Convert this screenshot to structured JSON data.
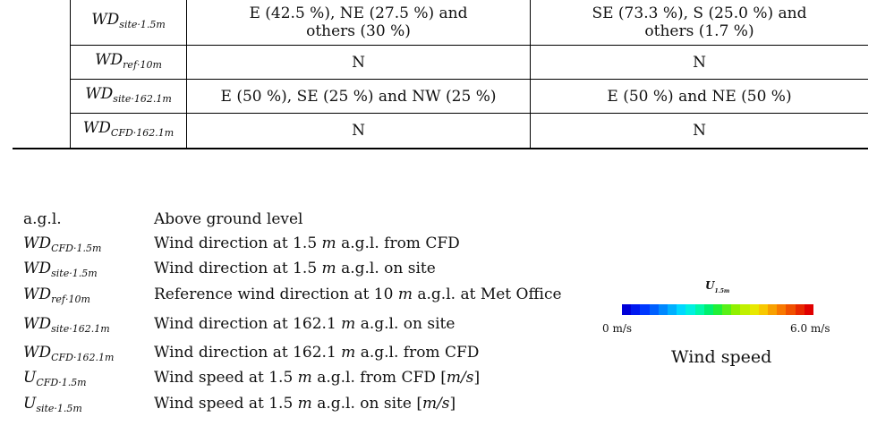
{
  "table": {
    "rows": [
      {
        "symbol": {
          "base": "WD",
          "sub": "site·1.5m"
        },
        "col1": [
          "E (42.5 %), NE (27.5 %) and",
          "others (30 %)"
        ],
        "col2": [
          "SE (73.3 %), S (25.0 %) and",
          "others (1.7 %)"
        ]
      },
      {
        "symbol": {
          "base": "WD",
          "sub": "ref·10m"
        },
        "col1": [
          "N"
        ],
        "col2": [
          "N"
        ]
      },
      {
        "symbol": {
          "base": "WD",
          "sub": "site·162.1m"
        },
        "col1": [
          "E (50 %), SE (25 %) and NW (25 %)"
        ],
        "col2": [
          "E (50 %) and NE (50 %)"
        ]
      },
      {
        "symbol": {
          "base": "WD",
          "sub": "CFD·162.1m"
        },
        "col1": [
          "N"
        ],
        "col2": [
          "N"
        ]
      }
    ]
  },
  "glossary": [
    {
      "term_plain": "a.g.l.",
      "def_parts": [
        "Above ground level"
      ]
    },
    {
      "term": {
        "base": "WD",
        "sub": "CFD·1.5m"
      },
      "def_parts": [
        "Wind direction at 1.5 ",
        "m",
        " a.g.l. from CFD"
      ]
    },
    {
      "term": {
        "base": "WD",
        "sub": "site·1.5m"
      },
      "def_parts": [
        "Wind direction at 1.5 ",
        "m",
        " a.g.l. on site"
      ]
    },
    {
      "term": {
        "base": "WD",
        "sub": "ref·10m"
      },
      "def_parts": [
        "Reference wind direction at 10 ",
        "m",
        " a.g.l. at Met Office"
      ]
    },
    {
      "term": {
        "base": "WD",
        "sub": "site·162.1m"
      },
      "def_parts": [
        "Wind direction at 162.1 ",
        "m",
        " a.g.l. on site"
      ]
    },
    {
      "term": {
        "base": "WD",
        "sub": "CFD·162.1m"
      },
      "def_parts": [
        "Wind direction at 162.1 ",
        "m",
        " a.g.l. from CFD"
      ]
    },
    {
      "term": {
        "base": "U",
        "sub": "CFD·1.5m"
      },
      "def_parts": [
        "Wind speed at 1.5 ",
        "m",
        " a.g.l. from CFD [",
        "m/s",
        "]"
      ]
    },
    {
      "term": {
        "base": "U",
        "sub": "site·1.5m"
      },
      "def_parts": [
        "Wind speed at 1.5 ",
        "m",
        " a.g.l. on site [",
        "m/s",
        "]"
      ]
    }
  ],
  "colorbar": {
    "label": {
      "base": "U",
      "sub": "1.5m"
    },
    "min_label": "0 m/s",
    "max_label": "6.0 m/s",
    "caption": "Wind speed",
    "colors": [
      "#0000d8",
      "#0018f0",
      "#0038ff",
      "#0060ff",
      "#0088ff",
      "#00b0ff",
      "#00d8ff",
      "#00f0e0",
      "#00f8a8",
      "#00f070",
      "#20f038",
      "#58f018",
      "#90f000",
      "#c0f000",
      "#e8e800",
      "#f8c800",
      "#f8a000",
      "#f87800",
      "#f05000",
      "#e82800",
      "#e00000"
    ]
  }
}
